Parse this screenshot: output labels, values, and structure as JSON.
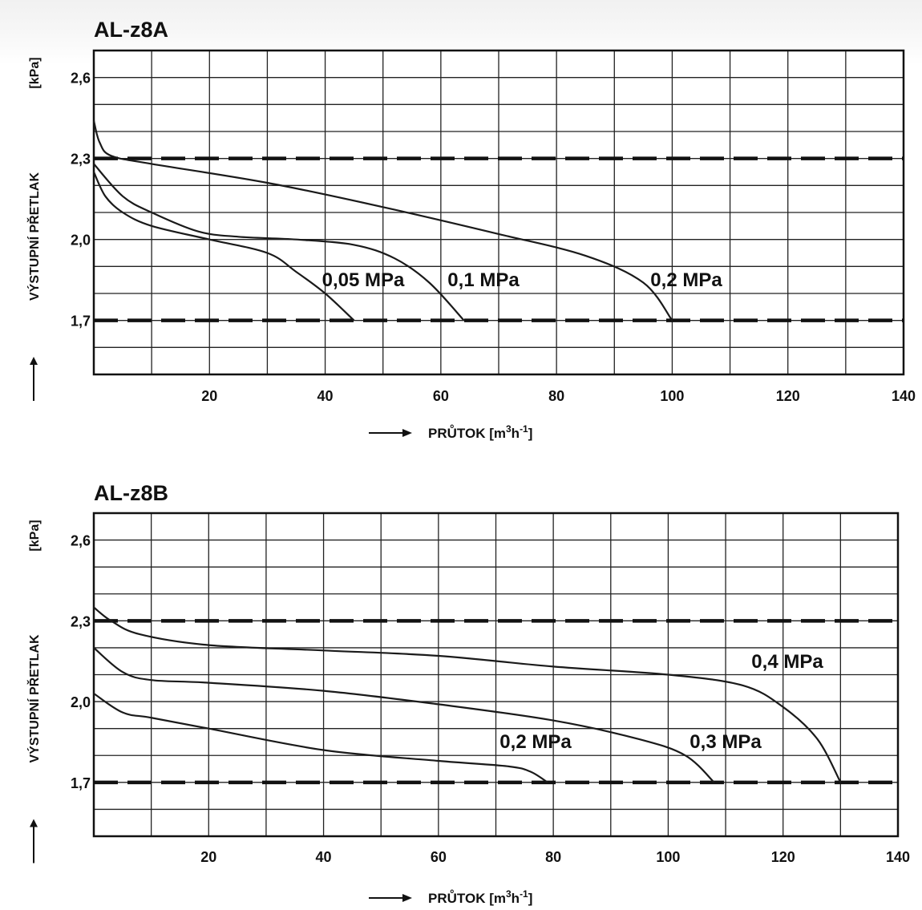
{
  "chart_data": [
    {
      "type": "line",
      "title": "AL-z8A",
      "ylabel": "VÝSTUPNÍ PŘETLAK",
      "yunit": "[kPa]",
      "xlabel": "PRŮTOK",
      "xunit_base": "[m",
      "xunit_sup1": "3",
      "xunit_mid": "h",
      "xunit_sup2": "-1",
      "xunit_end": "]",
      "xlim": [
        0,
        140
      ],
      "ylim": [
        1.5,
        2.7
      ],
      "x_ticks": [
        "20",
        "40",
        "60",
        "80",
        "100",
        "120",
        "140"
      ],
      "y_ticks": [
        {
          "value": 2.6,
          "label": "2,6"
        },
        {
          "value": 2.3,
          "label": "2,3"
        },
        {
          "value": 2.0,
          "label": "2,0"
        },
        {
          "value": 1.7,
          "label": "1,7"
        }
      ],
      "grid": true,
      "reference_lines": [
        2.3,
        1.7
      ],
      "series": [
        {
          "name": "0,05 MPa",
          "points": [
            [
              0,
              2.25
            ],
            [
              2,
              2.16
            ],
            [
              5,
              2.1
            ],
            [
              10,
              2.05
            ],
            [
              20,
              2.0
            ],
            [
              30,
              1.95
            ],
            [
              35,
              1.88
            ],
            [
              40,
              1.8
            ],
            [
              45,
              1.7
            ]
          ]
        },
        {
          "name": "0,1 MPa",
          "points": [
            [
              0,
              2.28
            ],
            [
              5,
              2.16
            ],
            [
              10,
              2.1
            ],
            [
              18,
              2.03
            ],
            [
              25,
              2.01
            ],
            [
              35,
              2.0
            ],
            [
              45,
              1.98
            ],
            [
              52,
              1.93
            ],
            [
              58,
              1.84
            ],
            [
              64,
              1.7
            ]
          ]
        },
        {
          "name": "0,2 MPa",
          "points": [
            [
              0,
              2.44
            ],
            [
              1,
              2.36
            ],
            [
              3,
              2.31
            ],
            [
              10,
              2.28
            ],
            [
              30,
              2.21
            ],
            [
              50,
              2.12
            ],
            [
              70,
              2.02
            ],
            [
              85,
              1.94
            ],
            [
              95,
              1.84
            ],
            [
              100,
              1.7
            ]
          ]
        }
      ]
    },
    {
      "type": "line",
      "title": "AL-z8B",
      "ylabel": "VÝSTUPNÍ PŘETLAK",
      "yunit": "[kPa]",
      "xlabel": "PRŮTOK",
      "xunit_base": "[m",
      "xunit_sup1": "3",
      "xunit_mid": "h",
      "xunit_sup2": "-1",
      "xunit_end": "]",
      "xlim": [
        0,
        140
      ],
      "ylim": [
        1.5,
        2.7
      ],
      "x_ticks": [
        "20",
        "40",
        "60",
        "80",
        "100",
        "120",
        "140"
      ],
      "y_ticks": [
        {
          "value": 2.6,
          "label": "2,6"
        },
        {
          "value": 2.3,
          "label": "2,3"
        },
        {
          "value": 2.0,
          "label": "2,0"
        },
        {
          "value": 1.7,
          "label": "1,7"
        }
      ],
      "grid": true,
      "reference_lines": [
        2.3,
        1.7
      ],
      "series": [
        {
          "name": "0,2 MPa",
          "points": [
            [
              0,
              2.03
            ],
            [
              5,
              1.96
            ],
            [
              10,
              1.94
            ],
            [
              20,
              1.9
            ],
            [
              40,
              1.82
            ],
            [
              60,
              1.78
            ],
            [
              72,
              1.76
            ],
            [
              76,
              1.74
            ],
            [
              79,
              1.7
            ]
          ]
        },
        {
          "name": "0,3 MPa",
          "points": [
            [
              0,
              2.2
            ],
            [
              5,
              2.11
            ],
            [
              10,
              2.08
            ],
            [
              20,
              2.07
            ],
            [
              40,
              2.04
            ],
            [
              60,
              1.99
            ],
            [
              80,
              1.93
            ],
            [
              95,
              1.86
            ],
            [
              103,
              1.8
            ],
            [
              108,
              1.7
            ]
          ]
        },
        {
          "name": "0,4 MPa",
          "points": [
            [
              0,
              2.35
            ],
            [
              3,
              2.3
            ],
            [
              8,
              2.25
            ],
            [
              20,
              2.21
            ],
            [
              40,
              2.19
            ],
            [
              60,
              2.17
            ],
            [
              80,
              2.13
            ],
            [
              100,
              2.1
            ],
            [
              113,
              2.06
            ],
            [
              120,
              1.98
            ],
            [
              126,
              1.86
            ],
            [
              130,
              1.7
            ]
          ]
        }
      ]
    }
  ]
}
